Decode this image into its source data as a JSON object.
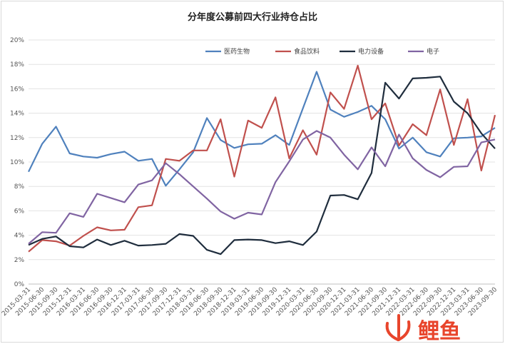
{
  "chart_data": {
    "type": "line",
    "title": "分年度公募前四大行业持仓占比",
    "xlabel": "",
    "ylabel": "",
    "ylim": [
      0,
      20
    ],
    "yticks": [
      "0%",
      "2%",
      "4%",
      "6%",
      "8%",
      "10%",
      "12%",
      "14%",
      "16%",
      "18%",
      "20%"
    ],
    "grid": true,
    "legend_position": "top",
    "categories": [
      "2015-03-31",
      "2015-06-30",
      "2015-09-30",
      "2015-12-31",
      "2016-03-31",
      "2016-06-30",
      "2016-09-30",
      "2016-12-31",
      "2017-03-31",
      "2017-06-30",
      "2017-09-30",
      "2017-12-31",
      "2018-03-31",
      "2018-06-30",
      "2018-09-30",
      "2018-12-31",
      "2019-03-31",
      "2019-06-30",
      "2019-09-30",
      "2019-12-31",
      "2020-03-31",
      "2020-06-30",
      "2020-09-30",
      "2020-12-31",
      "2021-03-31",
      "2021-06-30",
      "2021-09-30",
      "2021-12-31",
      "2022-03-31",
      "2022-06-30",
      "2022-09-30",
      "2022-12-31",
      "2023-03-31",
      "2023-06-30",
      "2023-09-30"
    ],
    "series": [
      {
        "name": "医药生物",
        "color": "#4f81bd",
        "values": [
          9.2,
          11.5,
          12.9,
          10.7,
          10.45,
          10.35,
          10.65,
          10.85,
          10.1,
          10.25,
          8.05,
          9.4,
          10.8,
          13.6,
          11.8,
          11.15,
          11.45,
          11.5,
          12.2,
          11.4,
          14.4,
          17.4,
          14.3,
          13.7,
          14.1,
          14.6,
          13.5,
          11.1,
          12.0,
          10.8,
          10.45,
          11.95,
          12.0,
          12.1,
          12.8
        ]
      },
      {
        "name": "食品饮料",
        "color": "#c0504d",
        "values": [
          2.65,
          3.6,
          3.5,
          3.15,
          3.95,
          4.65,
          4.4,
          4.45,
          6.3,
          6.45,
          10.25,
          10.1,
          10.95,
          10.95,
          13.5,
          8.8,
          13.4,
          12.8,
          15.3,
          10.3,
          12.6,
          10.6,
          15.7,
          14.35,
          17.9,
          13.5,
          14.8,
          11.35,
          13.1,
          12.2,
          15.95,
          11.4,
          15.15,
          9.3,
          13.85
        ]
      },
      {
        "name": "电力设备",
        "color": "#1f2d3d",
        "values": [
          3.2,
          3.7,
          3.9,
          3.1,
          3.0,
          3.65,
          3.2,
          3.55,
          3.15,
          3.2,
          3.3,
          4.1,
          3.95,
          2.8,
          2.45,
          3.6,
          3.65,
          3.6,
          3.35,
          3.5,
          3.2,
          4.3,
          7.25,
          7.3,
          6.95,
          9.1,
          16.5,
          15.2,
          16.85,
          16.9,
          17.0,
          14.95,
          14.0,
          12.35,
          11.1
        ]
      },
      {
        "name": "电子",
        "color": "#8064a2",
        "values": [
          3.3,
          4.25,
          4.2,
          5.8,
          5.5,
          7.4,
          7.05,
          6.7,
          8.15,
          8.5,
          9.9,
          9.0,
          8.0,
          7.0,
          5.95,
          5.35,
          5.85,
          5.7,
          8.35,
          10.05,
          11.85,
          12.55,
          12.0,
          10.6,
          9.4,
          11.2,
          9.65,
          12.25,
          10.3,
          9.35,
          8.75,
          9.6,
          9.65,
          11.6,
          11.85
        ]
      }
    ]
  },
  "watermark": {
    "logo_text": "火鲤鱼"
  }
}
